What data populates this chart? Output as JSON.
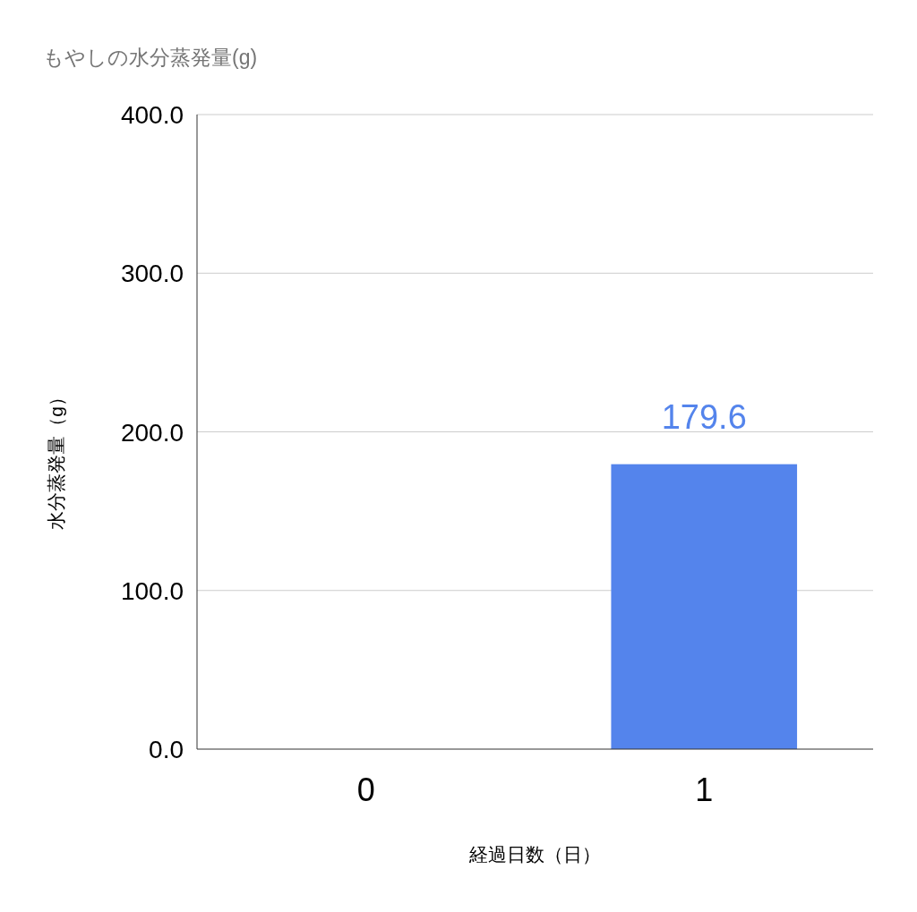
{
  "chart_data": {
    "type": "bar",
    "title": "もやしの水分蒸発量(g)",
    "xlabel": "経過日数（日）",
    "ylabel": "水分蒸発量（g）",
    "categories": [
      "0",
      "1"
    ],
    "values": [
      0,
      179.6
    ],
    "value_labels": [
      null,
      "179.6"
    ],
    "color": "#5484ec",
    "ylim": [
      0,
      400
    ],
    "yticks": [
      {
        "value": 0,
        "label": "0.0"
      },
      {
        "value": 100,
        "label": "100.0"
      },
      {
        "value": 200,
        "label": "200.0"
      },
      {
        "value": 300,
        "label": "300.0"
      },
      {
        "value": 400,
        "label": "400.0"
      }
    ],
    "grid": "y"
  }
}
